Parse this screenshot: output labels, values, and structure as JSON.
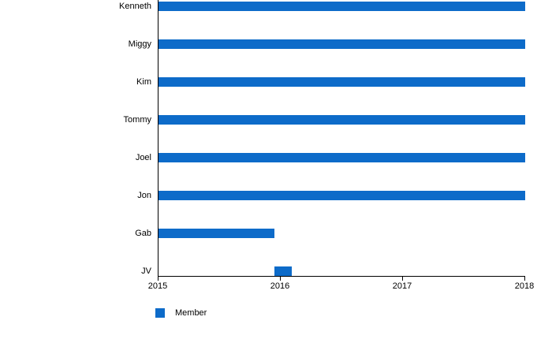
{
  "chart_data": {
    "type": "bar",
    "orientation": "horizontal",
    "title": "",
    "xlabel": "",
    "ylabel": "",
    "categories": [
      "Kenneth",
      "Miggy",
      "Kim",
      "Tommy",
      "Joel",
      "Jon",
      "Gab",
      "JV"
    ],
    "series": [
      {
        "name": "Member",
        "color": "#0d6bc9",
        "ranges": [
          [
            2015,
            2018
          ],
          [
            2015,
            2018
          ],
          [
            2015,
            2018
          ],
          [
            2015,
            2018
          ],
          [
            2015,
            2018
          ],
          [
            2015,
            2018
          ],
          [
            2015,
            2015.95
          ],
          [
            2015.95,
            2016.09
          ]
        ]
      }
    ],
    "xlim": [
      2015,
      2018
    ],
    "x_ticks": [
      {
        "value": 2015,
        "label": "2015"
      },
      {
        "value": 2016,
        "label": "2016"
      },
      {
        "value": 2017,
        "label": "2017"
      },
      {
        "value": 2018,
        "label": "2018"
      }
    ],
    "grid": false,
    "legend_position": "bottom-left"
  },
  "legend": {
    "items": [
      {
        "label": "Member",
        "color": "#0d6bc9"
      }
    ]
  },
  "colors": {
    "background": "#ffffff",
    "axis": "#000000",
    "text": "#000000",
    "bar": "#0d6bc9"
  }
}
